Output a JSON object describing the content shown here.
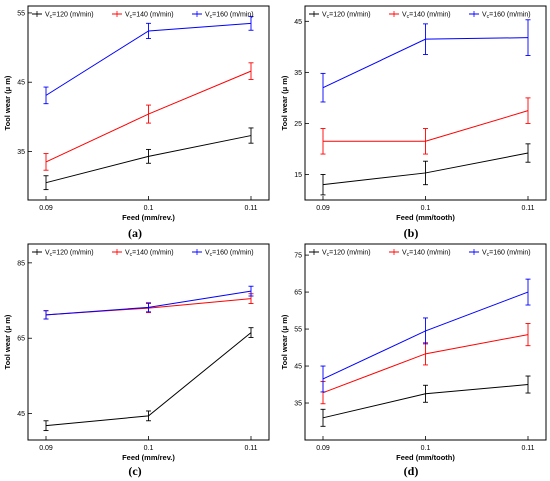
{
  "chart_data": [
    {
      "type": "line",
      "panel_label": "(a)",
      "xlabel": "Feed (mm/rev.)",
      "ylabel": "Tool  wear  (μ m)",
      "categories": [
        "0.09",
        "0.1",
        "0.11"
      ],
      "ylim": [
        28,
        56
      ],
      "yticks": [
        35,
        45,
        55
      ],
      "legend_position": "top",
      "series": [
        {
          "name": "120  (m/min)",
          "color": "#000000",
          "values": [
            30.5,
            34.3,
            37.3
          ],
          "err": [
            1.0,
            1.0,
            1.1
          ]
        },
        {
          "name": "140  (m/min)",
          "color": "#ff0000",
          "values": [
            33.5,
            40.4,
            46.6
          ],
          "err": [
            1.2,
            1.3,
            1.2
          ]
        },
        {
          "name": "160  (m/min)",
          "color": "#0000ff",
          "values": [
            43.1,
            52.4,
            53.5
          ],
          "err": [
            1.2,
            1.1,
            1.0
          ]
        }
      ]
    },
    {
      "type": "line",
      "panel_label": "(b)",
      "xlabel": "Feed (mm/tooth)",
      "ylabel": "Tool  wear  (μ m)",
      "categories": [
        "0.09",
        "0.1",
        "0.11"
      ],
      "ylim": [
        10,
        48
      ],
      "yticks": [
        15,
        25,
        35,
        45
      ],
      "legend_position": "top",
      "series": [
        {
          "name": "120  (m/min)",
          "color": "#000000",
          "values": [
            13.0,
            15.3,
            19.2
          ],
          "err": [
            2.0,
            2.3,
            1.8
          ]
        },
        {
          "name": "140  (m/min)",
          "color": "#ff0000",
          "values": [
            21.5,
            21.5,
            27.5
          ],
          "err": [
            2.5,
            2.5,
            2.5
          ]
        },
        {
          "name": "160  (m/min)",
          "color": "#0000ff",
          "values": [
            32.0,
            41.5,
            41.8
          ],
          "err": [
            2.8,
            3.0,
            3.5
          ]
        }
      ]
    },
    {
      "type": "line",
      "panel_label": "(c)",
      "xlabel": "Feed (mm/rev.)",
      "ylabel": "Tool  wear  (μ m)",
      "categories": [
        "0.09",
        "0.1",
        "0.11"
      ],
      "ylim": [
        38,
        90
      ],
      "yticks": [
        45,
        65,
        85
      ],
      "legend_position": "top",
      "series": [
        {
          "name": "120  (m/min)",
          "color": "#000000",
          "values": [
            41.8,
            44.4,
            66.5
          ],
          "err": [
            1.3,
            1.3,
            1.3
          ]
        },
        {
          "name": "140  (m/min)",
          "color": "#ff0000",
          "values": [
            71.2,
            73.0,
            75.5
          ],
          "err": [
            1.1,
            1.2,
            1.3
          ]
        },
        {
          "name": "160  (m/min)",
          "color": "#0000ff",
          "values": [
            71.2,
            73.2,
            77.5
          ],
          "err": [
            1.1,
            1.2,
            1.3
          ]
        }
      ]
    },
    {
      "type": "line",
      "panel_label": "(d)",
      "xlabel": "Feed (mm/tooth)",
      "ylabel": "Tool  wear  (μ m)",
      "categories": [
        "0.09",
        "0.1",
        "0.11"
      ],
      "ylim": [
        25,
        78
      ],
      "yticks": [
        35,
        45,
        55,
        65,
        75
      ],
      "legend_position": "top",
      "series": [
        {
          "name": "120  (m/min)",
          "color": "#000000",
          "values": [
            31.0,
            37.5,
            40.0
          ],
          "err": [
            2.3,
            2.3,
            2.3
          ]
        },
        {
          "name": "140  (m/min)",
          "color": "#ff0000",
          "values": [
            37.8,
            48.3,
            53.5
          ],
          "err": [
            3.0,
            3.0,
            3.0
          ]
        },
        {
          "name": "160  (m/min)",
          "color": "#0000ff",
          "values": [
            41.5,
            54.5,
            65.0
          ],
          "err": [
            3.5,
            3.5,
            3.5
          ]
        }
      ]
    }
  ]
}
